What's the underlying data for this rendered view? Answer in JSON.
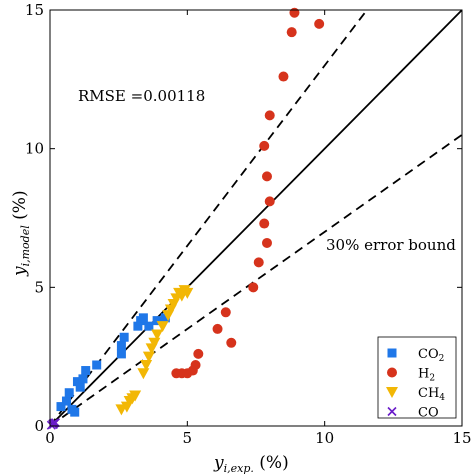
{
  "chart_data": {
    "type": "scatter",
    "title": "",
    "xlabel": {
      "base": "y",
      "sub": "i,exp.",
      "unit": " (%)"
    },
    "ylabel": {
      "base": "y",
      "sub": "i,model",
      "unit": " (%)"
    },
    "xlim": [
      0,
      15
    ],
    "ylim": [
      0,
      15
    ],
    "xticks": [
      0,
      5,
      10,
      15
    ],
    "yticks": [
      0,
      5,
      10,
      15
    ],
    "grid": false,
    "legend_position": "bottom-right",
    "annotations": {
      "rmse": "RMSE =0.00118",
      "error_bound": "30% error bound"
    },
    "reference_lines": [
      {
        "name": "parity",
        "slope": 1.0,
        "style": "solid"
      },
      {
        "name": "upper-bound",
        "slope": 1.3,
        "style": "dashed"
      },
      {
        "name": "lower-bound",
        "slope": 0.7,
        "style": "dashed"
      }
    ],
    "series": [
      {
        "name": "CO2",
        "label_base": "CO",
        "label_sub": "2",
        "marker": "square",
        "color": "#1f77e8",
        "points": [
          [
            0.4,
            0.7
          ],
          [
            0.6,
            0.9
          ],
          [
            0.7,
            1.2
          ],
          [
            0.8,
            0.6
          ],
          [
            0.9,
            0.5
          ],
          [
            1.0,
            1.6
          ],
          [
            1.1,
            1.4
          ],
          [
            1.2,
            1.7
          ],
          [
            1.3,
            2.0
          ],
          [
            1.7,
            2.2
          ],
          [
            2.6,
            2.9
          ],
          [
            2.7,
            3.2
          ],
          [
            2.6,
            2.6
          ],
          [
            3.2,
            3.6
          ],
          [
            3.3,
            3.8
          ],
          [
            3.4,
            3.9
          ],
          [
            3.6,
            3.6
          ],
          [
            3.9,
            3.8
          ],
          [
            4.2,
            3.9
          ]
        ]
      },
      {
        "name": "H2",
        "label_base": "H",
        "label_sub": "2",
        "marker": "circle",
        "color": "#d6331c",
        "points": [
          [
            4.6,
            1.9
          ],
          [
            4.8,
            1.9
          ],
          [
            5.0,
            1.9
          ],
          [
            5.2,
            2.0
          ],
          [
            5.3,
            2.2
          ],
          [
            5.4,
            2.6
          ],
          [
            6.1,
            3.5
          ],
          [
            6.4,
            4.1
          ],
          [
            6.6,
            3.0
          ],
          [
            7.4,
            5.0
          ],
          [
            7.6,
            5.9
          ],
          [
            7.9,
            6.6
          ],
          [
            7.8,
            7.3
          ],
          [
            8.0,
            8.1
          ],
          [
            7.9,
            9.0
          ],
          [
            7.8,
            10.1
          ],
          [
            8.0,
            11.2
          ],
          [
            8.5,
            12.6
          ],
          [
            8.8,
            14.2
          ],
          [
            8.9,
            14.9
          ],
          [
            9.8,
            14.5
          ]
        ]
      },
      {
        "name": "CH4",
        "label_base": "CH",
        "label_sub": "4",
        "marker": "triangle-down",
        "color": "#f2b705",
        "points": [
          [
            2.6,
            0.6
          ],
          [
            2.8,
            0.7
          ],
          [
            2.9,
            0.9
          ],
          [
            3.0,
            1.0
          ],
          [
            3.1,
            1.1
          ],
          [
            3.4,
            1.9
          ],
          [
            3.5,
            2.2
          ],
          [
            3.6,
            2.5
          ],
          [
            3.7,
            2.8
          ],
          [
            3.8,
            3.0
          ],
          [
            3.9,
            3.3
          ],
          [
            4.1,
            3.6
          ],
          [
            4.3,
            4.0
          ],
          [
            4.4,
            4.2
          ],
          [
            4.5,
            4.4
          ],
          [
            4.6,
            4.6
          ],
          [
            4.7,
            4.8
          ],
          [
            4.8,
            4.7
          ],
          [
            4.9,
            4.9
          ],
          [
            5.0,
            4.8
          ]
        ]
      },
      {
        "name": "CO",
        "label_base": "CO",
        "label_sub": "",
        "marker": "x",
        "color": "#6a1bc9",
        "points": [
          [
            0.05,
            0.03
          ],
          [
            0.1,
            0.08
          ],
          [
            0.15,
            0.1
          ],
          [
            0.2,
            0.12
          ],
          [
            0.12,
            0.05
          ]
        ]
      }
    ]
  }
}
